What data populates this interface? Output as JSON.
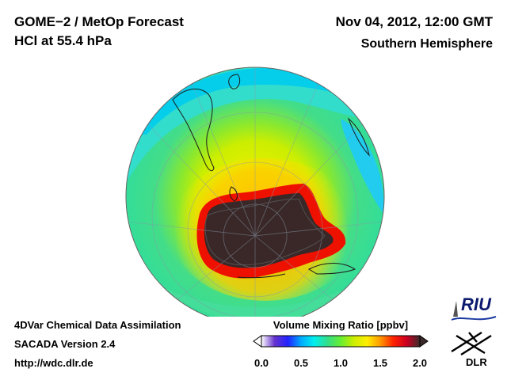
{
  "header": {
    "title": "GOME−2 / MetOp Forecast",
    "species": "HCl at 55.4 hPa",
    "datetime": "Nov 04, 2012, 12:00 GMT",
    "region": "Southern Hemisphere"
  },
  "footer": {
    "method": "4DVar Chemical Data Assimilation",
    "version": "SACADA Version 2.4",
    "url": "http://wdc.dlr.de"
  },
  "colorbar": {
    "title": "Volume Mixing Ratio [ppbv]",
    "ticks": [
      "0.0",
      "0.5",
      "1.0",
      "1.5",
      "2.0"
    ],
    "min": 0.0,
    "max": 2.0,
    "colors": [
      "#ffffff",
      "#6633cc",
      "#2222ff",
      "#00aaff",
      "#00eeee",
      "#33dd88",
      "#66ee33",
      "#ccee00",
      "#ffee00",
      "#ff9900",
      "#ff2200",
      "#cc0022",
      "#3a2a2a"
    ]
  },
  "logos": {
    "riu": "RIU",
    "dlr": "DLR"
  },
  "icons": {
    "riu_logo": "riu-logo",
    "dlr_logo": "dlr-logo"
  }
}
